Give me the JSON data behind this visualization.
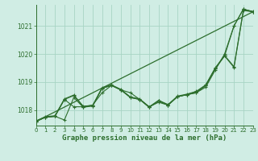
{
  "title": "Graphe pression niveau de la mer (hPa)",
  "bg_color": "#d0ede4",
  "grid_color": "#a8d4c4",
  "line_color": "#2d6e2d",
  "xlim": [
    0,
    23
  ],
  "ylim": [
    1017.45,
    1021.75
  ],
  "yticks": [
    1018,
    1019,
    1020,
    1021
  ],
  "xtick_labels": [
    "0",
    "1",
    "2",
    "3",
    "4",
    "5",
    "6",
    "7",
    "8",
    "9",
    "10",
    "11",
    "12",
    "13",
    "14",
    "15",
    "16",
    "17",
    "18",
    "19",
    "20",
    "21",
    "22",
    "23"
  ],
  "series": [
    [
      1017.6,
      1017.75,
      1017.78,
      1017.65,
      1018.45,
      1018.1,
      1018.15,
      1018.78,
      1018.88,
      1018.72,
      1018.45,
      1018.38,
      1018.1,
      1018.33,
      1018.18,
      1018.48,
      1018.55,
      1018.62,
      1018.88,
      1019.48,
      1019.93,
      1021.0,
      1021.6,
      1021.5
    ],
    [
      1017.6,
      1017.75,
      1017.78,
      1018.38,
      1018.12,
      1018.12,
      1018.18,
      1018.62,
      1018.88,
      1018.72,
      1018.62,
      1018.38,
      1018.12,
      1018.28,
      1018.18,
      1018.48,
      1018.55,
      1018.62,
      1018.82,
      1019.42,
      1020.0,
      1021.0,
      1021.6,
      1021.5
    ],
    [
      1017.6,
      1017.75,
      1017.78,
      1018.38,
      1018.52,
      1018.12,
      1018.15,
      1018.78,
      1018.88,
      1018.72,
      1018.45,
      1018.38,
      1018.1,
      1018.33,
      1018.18,
      1018.48,
      1018.55,
      1018.65,
      1018.88,
      1019.48,
      1019.93,
      1019.52,
      1021.55,
      1021.5
    ],
    [
      1017.62,
      1017.77,
      1017.8,
      1018.4,
      1018.54,
      1018.14,
      1018.17,
      1018.8,
      1018.9,
      1018.74,
      1018.47,
      1018.4,
      1018.12,
      1018.35,
      1018.2,
      1018.5,
      1018.57,
      1018.67,
      1018.9,
      1019.5,
      1019.95,
      1019.55,
      1021.58,
      1021.52
    ]
  ],
  "show_spines_top": false,
  "show_spines_right": false
}
